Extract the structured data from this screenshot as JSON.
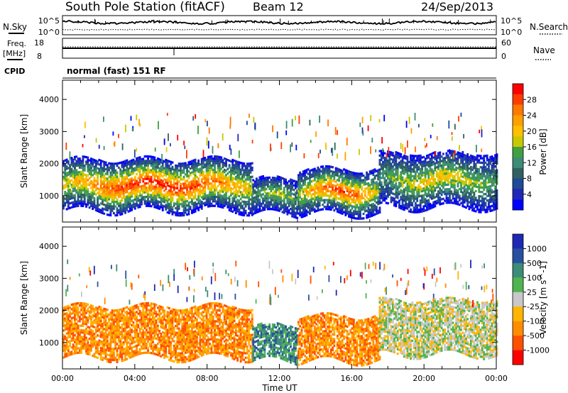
{
  "header": {
    "station": "South Pole Station (fitACF)",
    "beam": "Beam 12",
    "date": "24/Sep/2013"
  },
  "noise_panel": {
    "left_label": "N.Sky",
    "right_label": "N.Search",
    "left_ticks": [
      "10^5",
      "10^0"
    ],
    "right_ticks": [
      "10^5",
      "10^0"
    ]
  },
  "freq_panel": {
    "left_label_1": "Freq.",
    "left_label_2": "[MHz]",
    "right_label": "Nave",
    "left_ticks": [
      "18",
      "8"
    ],
    "right_ticks": [
      "60",
      "0"
    ]
  },
  "cpid": {
    "label": "CPID",
    "value": "normal (fast) 151 RF"
  },
  "chart_data": [
    {
      "type": "heatmap",
      "parameter": "power",
      "ylabel": "Slant Range [km]",
      "xlabel": "",
      "ylim": [
        180,
        4600
      ],
      "xlim_hours": [
        0,
        24
      ],
      "yticks": [
        "1000",
        "2000",
        "3000",
        "4000"
      ],
      "colorbar": {
        "label": "Power [dB]",
        "ticks": [
          "28",
          "24",
          "20",
          "16",
          "12",
          "8",
          "4"
        ],
        "colors": [
          "#ff0000",
          "#ff3c00",
          "#ff7800",
          "#ff9f00",
          "#ffc000",
          "#c8c800",
          "#40a040",
          "#3c8c78",
          "#306060",
          "#1e4a96",
          "#1e28b4",
          "#0000ff"
        ]
      },
      "echo_bands": [
        {
          "t_start": 0.0,
          "t_end": 10.5,
          "range_low": 500,
          "range_high": 2100,
          "peak_db": 28
        },
        {
          "t_start": 10.5,
          "t_end": 13.0,
          "range_low": 400,
          "range_high": 1500,
          "peak_db": 16
        },
        {
          "t_start": 13.0,
          "t_end": 17.5,
          "range_low": 400,
          "range_high": 1800,
          "peak_db": 26
        },
        {
          "t_start": 17.5,
          "t_end": 24.0,
          "range_low": 600,
          "range_high": 2300,
          "peak_db": 18
        }
      ]
    },
    {
      "type": "heatmap",
      "parameter": "velocity",
      "ylabel": "Slant Range [km]",
      "xlabel": "Time UT",
      "ylim": [
        180,
        4600
      ],
      "xlim_hours": [
        0,
        24
      ],
      "yticks": [
        "1000",
        "2000",
        "3000",
        "4000"
      ],
      "xticks": [
        "00:00",
        "04:00",
        "08:00",
        "12:00",
        "16:00",
        "20:00",
        "00:00"
      ],
      "colorbar": {
        "label": "Velocity [m s^-1]",
        "ticks": [
          "1000",
          "500",
          "100",
          "25",
          "-25",
          "-100",
          "-500",
          "-1000"
        ],
        "colors": [
          "#1e28b4",
          "#2850a0",
          "#3c8c78",
          "#50b450",
          "#c8c8c8",
          "#ffb400",
          "#ff8c00",
          "#ff5000",
          "#ff0000"
        ]
      },
      "echo_bands": [
        {
          "t_start": 0.0,
          "t_end": 10.5,
          "range_low": 500,
          "range_high": 2100,
          "dominant_velocity": -250
        },
        {
          "t_start": 10.5,
          "t_end": 13.0,
          "range_low": 400,
          "range_high": 1500,
          "dominant_velocity": 50
        },
        {
          "t_start": 13.0,
          "t_end": 17.5,
          "range_low": 400,
          "range_high": 1800,
          "dominant_velocity": -250
        },
        {
          "t_start": 17.5,
          "t_end": 24.0,
          "range_low": 600,
          "range_high": 2300,
          "dominant_velocity": 0
        }
      ]
    }
  ]
}
